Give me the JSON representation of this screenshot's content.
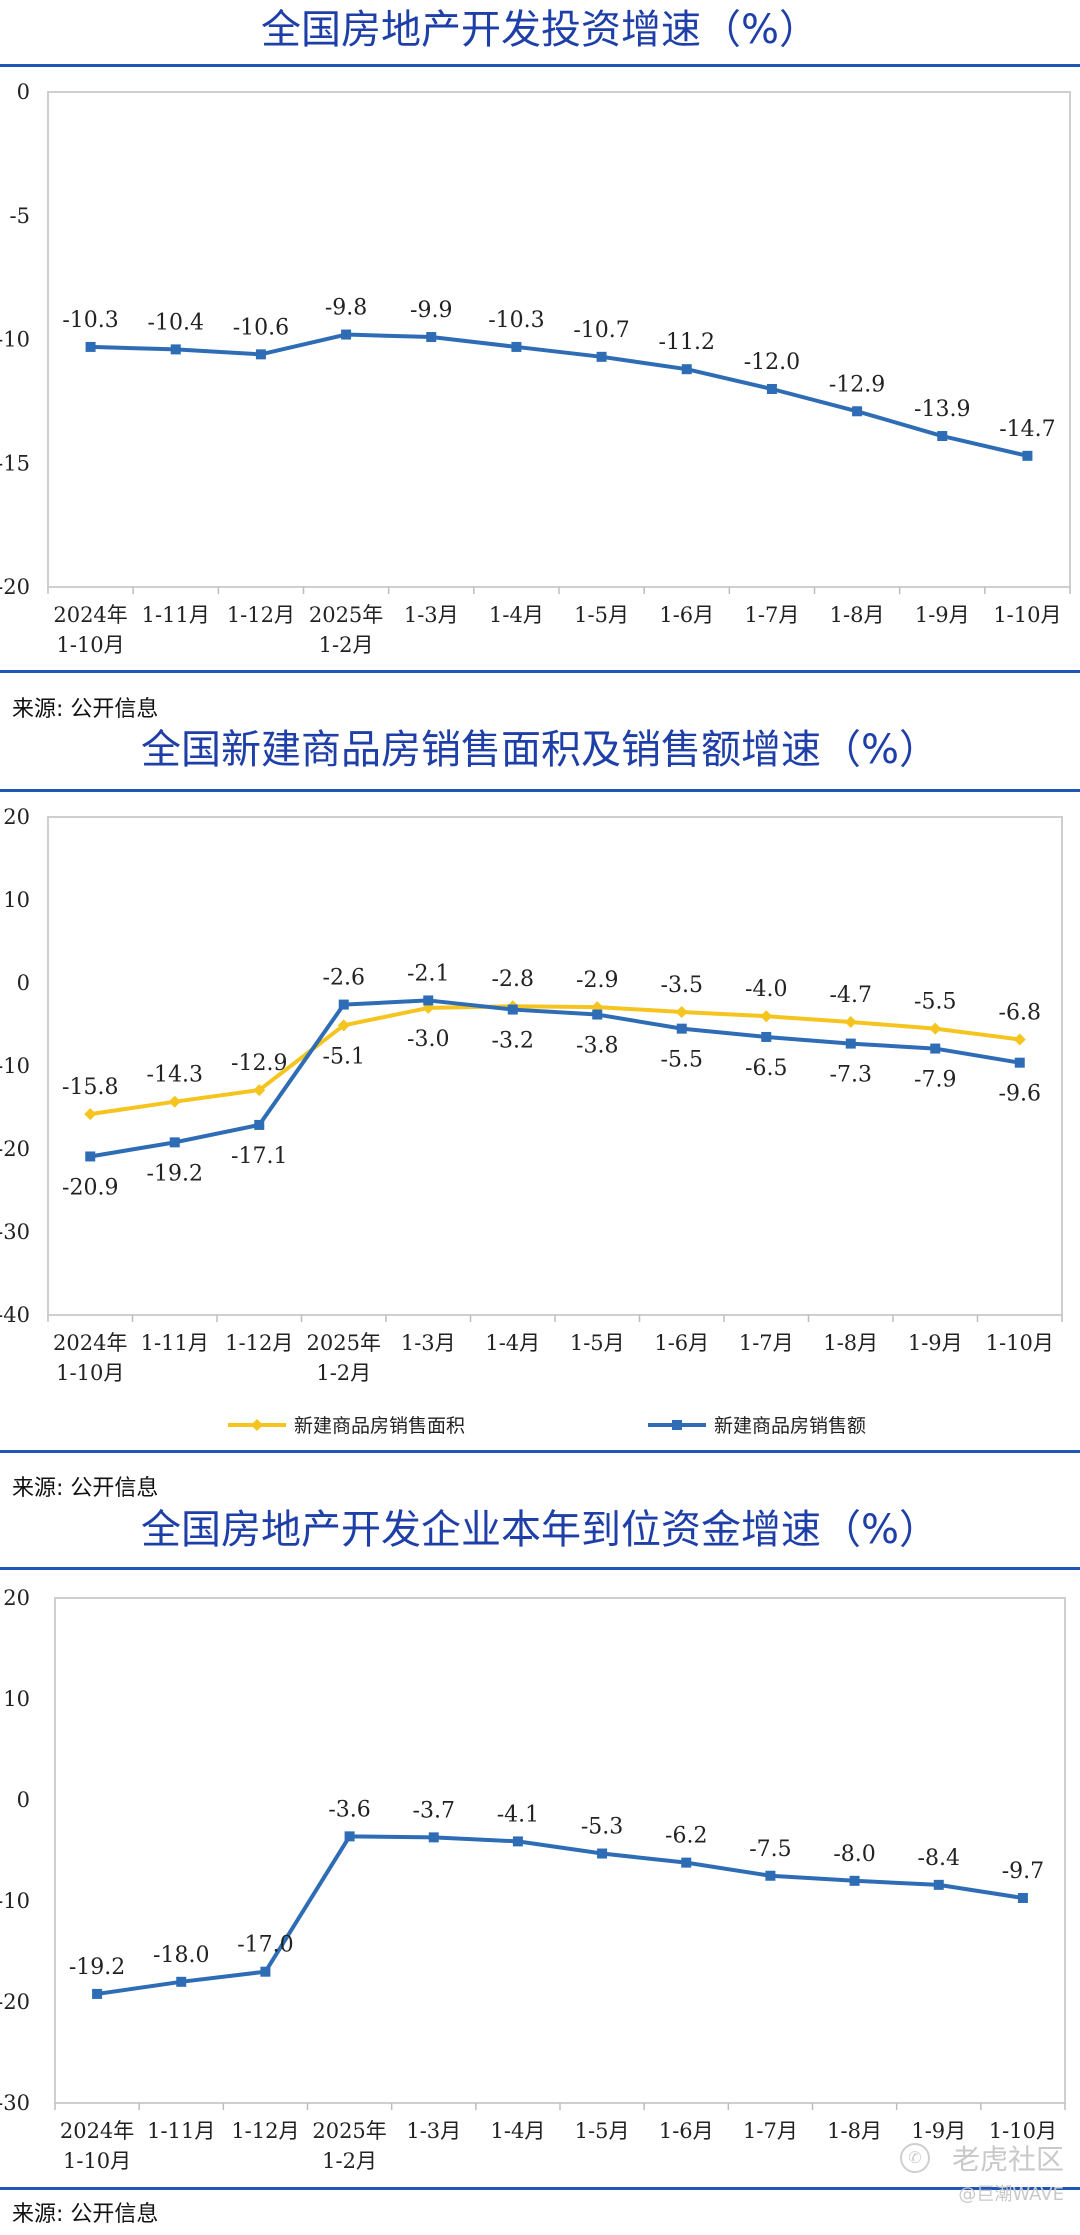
{
  "watermark": {
    "brand": "老虎社区",
    "author": "@巨潮WAVE"
  },
  "chart_data": [
    {
      "type": "line",
      "title": "全国房地产开发投资增速（%）",
      "source": "来源: 公开信息",
      "categories": [
        [
          "2024年",
          "1-10月"
        ],
        [
          "1-11月"
        ],
        [
          "1-12月"
        ],
        [
          "2025年",
          "1-2月"
        ],
        [
          "1-3月"
        ],
        [
          "1-4月"
        ],
        [
          "1-5月"
        ],
        [
          "1-6月"
        ],
        [
          "1-7月"
        ],
        [
          "1-8月"
        ],
        [
          "1-9月"
        ],
        [
          "1-10月"
        ]
      ],
      "ylim": [
        -20,
        0
      ],
      "yticks": [
        0,
        -5,
        -10,
        -15,
        -20
      ],
      "grid": false,
      "series": [
        {
          "name": "",
          "color": "#2e6db5",
          "values": [
            -10.3,
            -10.4,
            -10.6,
            -9.8,
            -9.9,
            -10.3,
            -10.7,
            -11.2,
            -12.0,
            -12.9,
            -13.9,
            -14.7
          ],
          "labels": [
            "-10.3",
            "-10.4",
            "-10.6",
            "-9.8",
            "-9.9",
            "-10.3",
            "-10.7",
            "-11.2",
            "-12.0",
            "-12.9",
            "-13.9",
            "-14.7"
          ],
          "label_position": [
            "above",
            "above",
            "above",
            "above",
            "above",
            "above",
            "above",
            "above",
            "above",
            "above",
            "above",
            "above"
          ]
        }
      ]
    },
    {
      "type": "line",
      "title": "全国新建商品房销售面积及销售额增速（%）",
      "source": "来源: 公开信息",
      "categories": [
        [
          "2024年",
          "1-10月"
        ],
        [
          "1-11月"
        ],
        [
          "1-12月"
        ],
        [
          "2025年",
          "1-2月"
        ],
        [
          "1-3月"
        ],
        [
          "1-4月"
        ],
        [
          "1-5月"
        ],
        [
          "1-6月"
        ],
        [
          "1-7月"
        ],
        [
          "1-8月"
        ],
        [
          "1-9月"
        ],
        [
          "1-10月"
        ]
      ],
      "ylim": [
        -40,
        20
      ],
      "yticks": [
        20,
        10,
        0,
        -10,
        -20,
        -30,
        -40
      ],
      "grid": false,
      "legend": "bottom",
      "series": [
        {
          "name": "新建商品房销售面积",
          "color": "#f5c41f",
          "marker": "diamond",
          "values": [
            -15.8,
            -14.3,
            -12.9,
            -5.1,
            -3.0,
            -2.8,
            -2.9,
            -3.5,
            -4.0,
            -4.7,
            -5.5,
            -6.8
          ],
          "labels": [
            "-15.8",
            "-14.3",
            "-12.9",
            "-5.1",
            "-3.0",
            "-2.8",
            "-2.9",
            "-3.5",
            "-4.0",
            "-4.7",
            "-5.5",
            "-6.8"
          ],
          "label_position": [
            "above",
            "above",
            "above",
            "below",
            "below",
            "above",
            "above",
            "above",
            "above",
            "above",
            "above",
            "above"
          ]
        },
        {
          "name": "新建商品房销售额",
          "color": "#2e6db5",
          "marker": "square",
          "values": [
            -20.9,
            -19.2,
            -17.1,
            -2.6,
            -2.1,
            -3.2,
            -3.8,
            -5.5,
            -6.5,
            -7.3,
            -7.9,
            -9.6
          ],
          "labels": [
            "-20.9",
            "-19.2",
            "-17.1",
            "-2.6",
            "-2.1",
            "-3.2",
            "-3.8",
            "-5.5",
            "-6.5",
            "-7.3",
            "-7.9",
            "-9.6"
          ],
          "label_position": [
            "below",
            "below",
            "below",
            "above",
            "above",
            "below",
            "below",
            "below",
            "below",
            "below",
            "below",
            "below"
          ]
        }
      ]
    },
    {
      "type": "line",
      "title": "全国房地产开发企业本年到位资金增速（%）",
      "source": "来源: 公开信息",
      "categories": [
        [
          "2024年",
          "1-10月"
        ],
        [
          "1-11月"
        ],
        [
          "1-12月"
        ],
        [
          "2025年",
          "1-2月"
        ],
        [
          "1-3月"
        ],
        [
          "1-4月"
        ],
        [
          "1-5月"
        ],
        [
          "1-6月"
        ],
        [
          "1-7月"
        ],
        [
          "1-8月"
        ],
        [
          "1-9月"
        ],
        [
          "1-10月"
        ]
      ],
      "ylim": [
        -30,
        20
      ],
      "yticks": [
        20,
        10,
        0,
        -10,
        -20,
        -30
      ],
      "grid": false,
      "series": [
        {
          "name": "",
          "color": "#2e6db5",
          "values": [
            -19.2,
            -18.0,
            -17.0,
            -3.6,
            -3.7,
            -4.1,
            -5.3,
            -6.2,
            -7.5,
            -8.0,
            -8.4,
            -9.7
          ],
          "labels": [
            "-19.2",
            "-18.0",
            "-17.0",
            "-3.6",
            "-3.7",
            "-4.1",
            "-5.3",
            "-6.2",
            "-7.5",
            "-8.0",
            "-8.4",
            "-9.7"
          ],
          "label_position": [
            "above",
            "above",
            "above",
            "above",
            "above",
            "above",
            "above",
            "above",
            "above",
            "above",
            "above",
            "above"
          ]
        }
      ]
    }
  ]
}
